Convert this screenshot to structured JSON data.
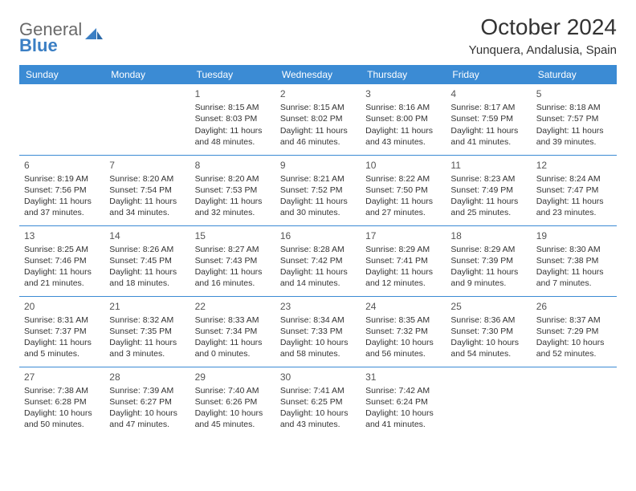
{
  "brand": {
    "part1": "General",
    "part2": "Blue"
  },
  "title": "October 2024",
  "location": "Yunquera, Andalusia, Spain",
  "colors": {
    "header_bg": "#3b8bd4",
    "header_text": "#ffffff",
    "cell_border": "#3b8bd4",
    "body_text": "#333333",
    "brand_gray": "#6a6a6a",
    "brand_blue": "#3b7fc4"
  },
  "day_headers": [
    "Sunday",
    "Monday",
    "Tuesday",
    "Wednesday",
    "Thursday",
    "Friday",
    "Saturday"
  ],
  "weeks": [
    [
      null,
      null,
      {
        "n": "1",
        "sr": "Sunrise: 8:15 AM",
        "ss": "Sunset: 8:03 PM",
        "d1": "Daylight: 11 hours",
        "d2": "and 48 minutes."
      },
      {
        "n": "2",
        "sr": "Sunrise: 8:15 AM",
        "ss": "Sunset: 8:02 PM",
        "d1": "Daylight: 11 hours",
        "d2": "and 46 minutes."
      },
      {
        "n": "3",
        "sr": "Sunrise: 8:16 AM",
        "ss": "Sunset: 8:00 PM",
        "d1": "Daylight: 11 hours",
        "d2": "and 43 minutes."
      },
      {
        "n": "4",
        "sr": "Sunrise: 8:17 AM",
        "ss": "Sunset: 7:59 PM",
        "d1": "Daylight: 11 hours",
        "d2": "and 41 minutes."
      },
      {
        "n": "5",
        "sr": "Sunrise: 8:18 AM",
        "ss": "Sunset: 7:57 PM",
        "d1": "Daylight: 11 hours",
        "d2": "and 39 minutes."
      }
    ],
    [
      {
        "n": "6",
        "sr": "Sunrise: 8:19 AM",
        "ss": "Sunset: 7:56 PM",
        "d1": "Daylight: 11 hours",
        "d2": "and 37 minutes."
      },
      {
        "n": "7",
        "sr": "Sunrise: 8:20 AM",
        "ss": "Sunset: 7:54 PM",
        "d1": "Daylight: 11 hours",
        "d2": "and 34 minutes."
      },
      {
        "n": "8",
        "sr": "Sunrise: 8:20 AM",
        "ss": "Sunset: 7:53 PM",
        "d1": "Daylight: 11 hours",
        "d2": "and 32 minutes."
      },
      {
        "n": "9",
        "sr": "Sunrise: 8:21 AM",
        "ss": "Sunset: 7:52 PM",
        "d1": "Daylight: 11 hours",
        "d2": "and 30 minutes."
      },
      {
        "n": "10",
        "sr": "Sunrise: 8:22 AM",
        "ss": "Sunset: 7:50 PM",
        "d1": "Daylight: 11 hours",
        "d2": "and 27 minutes."
      },
      {
        "n": "11",
        "sr": "Sunrise: 8:23 AM",
        "ss": "Sunset: 7:49 PM",
        "d1": "Daylight: 11 hours",
        "d2": "and 25 minutes."
      },
      {
        "n": "12",
        "sr": "Sunrise: 8:24 AM",
        "ss": "Sunset: 7:47 PM",
        "d1": "Daylight: 11 hours",
        "d2": "and 23 minutes."
      }
    ],
    [
      {
        "n": "13",
        "sr": "Sunrise: 8:25 AM",
        "ss": "Sunset: 7:46 PM",
        "d1": "Daylight: 11 hours",
        "d2": "and 21 minutes."
      },
      {
        "n": "14",
        "sr": "Sunrise: 8:26 AM",
        "ss": "Sunset: 7:45 PM",
        "d1": "Daylight: 11 hours",
        "d2": "and 18 minutes."
      },
      {
        "n": "15",
        "sr": "Sunrise: 8:27 AM",
        "ss": "Sunset: 7:43 PM",
        "d1": "Daylight: 11 hours",
        "d2": "and 16 minutes."
      },
      {
        "n": "16",
        "sr": "Sunrise: 8:28 AM",
        "ss": "Sunset: 7:42 PM",
        "d1": "Daylight: 11 hours",
        "d2": "and 14 minutes."
      },
      {
        "n": "17",
        "sr": "Sunrise: 8:29 AM",
        "ss": "Sunset: 7:41 PM",
        "d1": "Daylight: 11 hours",
        "d2": "and 12 minutes."
      },
      {
        "n": "18",
        "sr": "Sunrise: 8:29 AM",
        "ss": "Sunset: 7:39 PM",
        "d1": "Daylight: 11 hours",
        "d2": "and 9 minutes."
      },
      {
        "n": "19",
        "sr": "Sunrise: 8:30 AM",
        "ss": "Sunset: 7:38 PM",
        "d1": "Daylight: 11 hours",
        "d2": "and 7 minutes."
      }
    ],
    [
      {
        "n": "20",
        "sr": "Sunrise: 8:31 AM",
        "ss": "Sunset: 7:37 PM",
        "d1": "Daylight: 11 hours",
        "d2": "and 5 minutes."
      },
      {
        "n": "21",
        "sr": "Sunrise: 8:32 AM",
        "ss": "Sunset: 7:35 PM",
        "d1": "Daylight: 11 hours",
        "d2": "and 3 minutes."
      },
      {
        "n": "22",
        "sr": "Sunrise: 8:33 AM",
        "ss": "Sunset: 7:34 PM",
        "d1": "Daylight: 11 hours",
        "d2": "and 0 minutes."
      },
      {
        "n": "23",
        "sr": "Sunrise: 8:34 AM",
        "ss": "Sunset: 7:33 PM",
        "d1": "Daylight: 10 hours",
        "d2": "and 58 minutes."
      },
      {
        "n": "24",
        "sr": "Sunrise: 8:35 AM",
        "ss": "Sunset: 7:32 PM",
        "d1": "Daylight: 10 hours",
        "d2": "and 56 minutes."
      },
      {
        "n": "25",
        "sr": "Sunrise: 8:36 AM",
        "ss": "Sunset: 7:30 PM",
        "d1": "Daylight: 10 hours",
        "d2": "and 54 minutes."
      },
      {
        "n": "26",
        "sr": "Sunrise: 8:37 AM",
        "ss": "Sunset: 7:29 PM",
        "d1": "Daylight: 10 hours",
        "d2": "and 52 minutes."
      }
    ],
    [
      {
        "n": "27",
        "sr": "Sunrise: 7:38 AM",
        "ss": "Sunset: 6:28 PM",
        "d1": "Daylight: 10 hours",
        "d2": "and 50 minutes."
      },
      {
        "n": "28",
        "sr": "Sunrise: 7:39 AM",
        "ss": "Sunset: 6:27 PM",
        "d1": "Daylight: 10 hours",
        "d2": "and 47 minutes."
      },
      {
        "n": "29",
        "sr": "Sunrise: 7:40 AM",
        "ss": "Sunset: 6:26 PM",
        "d1": "Daylight: 10 hours",
        "d2": "and 45 minutes."
      },
      {
        "n": "30",
        "sr": "Sunrise: 7:41 AM",
        "ss": "Sunset: 6:25 PM",
        "d1": "Daylight: 10 hours",
        "d2": "and 43 minutes."
      },
      {
        "n": "31",
        "sr": "Sunrise: 7:42 AM",
        "ss": "Sunset: 6:24 PM",
        "d1": "Daylight: 10 hours",
        "d2": "and 41 minutes."
      },
      null,
      null
    ]
  ]
}
